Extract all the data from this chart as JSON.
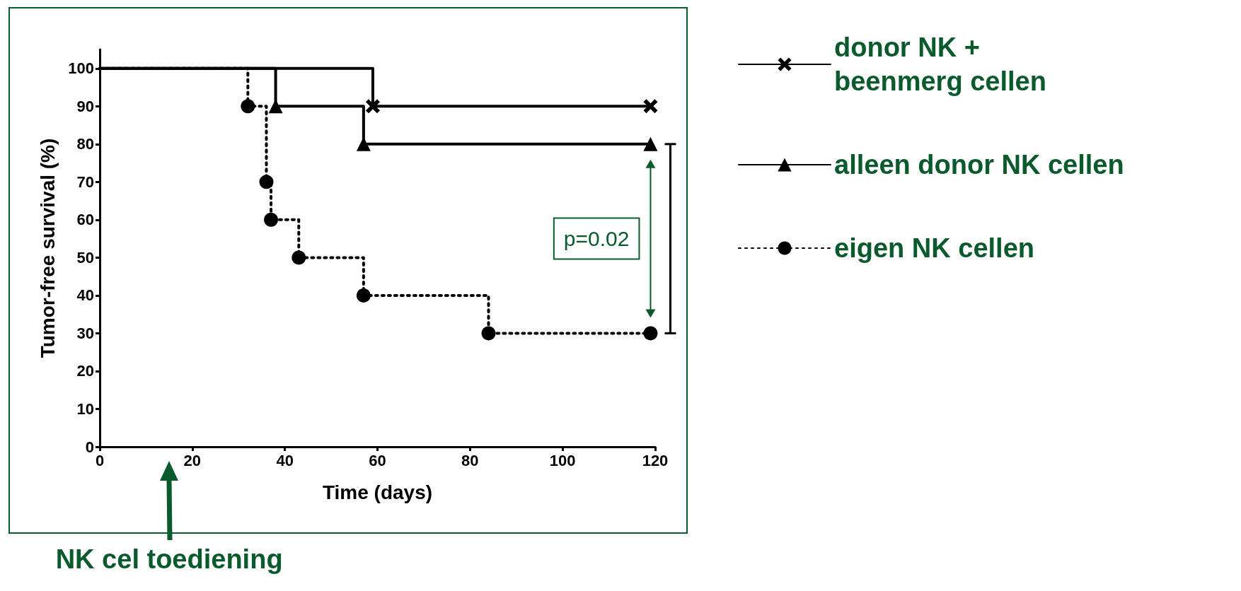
{
  "chart_data": {
    "type": "step",
    "xlabel": "Time (days)",
    "ylabel": "Tumor-free survival (%)",
    "xlim": [
      0,
      120
    ],
    "xticks": [
      0,
      20,
      40,
      60,
      80,
      100,
      120
    ],
    "ylim": [
      0,
      105
    ],
    "yticks": [
      0,
      10,
      20,
      30,
      40,
      50,
      60,
      70,
      80,
      90,
      100
    ],
    "grid": false,
    "legend": "right",
    "series": [
      {
        "name": "donor NK + beenmerg cellen",
        "color": "#000000",
        "marker": "cross",
        "line_style": "solid",
        "x": [
          0,
          59,
          119
        ],
        "values": [
          100,
          90,
          90
        ]
      },
      {
        "name": "alleen donor NK cellen",
        "color": "#000000",
        "marker": "triangle",
        "line_style": "solid",
        "x": [
          0,
          38,
          57,
          119
        ],
        "values": [
          100,
          90,
          80,
          80
        ]
      },
      {
        "name": "eigen NK cellen",
        "color": "#000000",
        "marker": "circle",
        "line_style": "dotted",
        "x": [
          0,
          32,
          36,
          37,
          43,
          57,
          84,
          119
        ],
        "values": [
          100,
          90,
          70,
          60,
          50,
          40,
          30,
          30
        ]
      }
    ],
    "annotations": [
      "p=0.02",
      "NK cel toediening"
    ]
  }
}
